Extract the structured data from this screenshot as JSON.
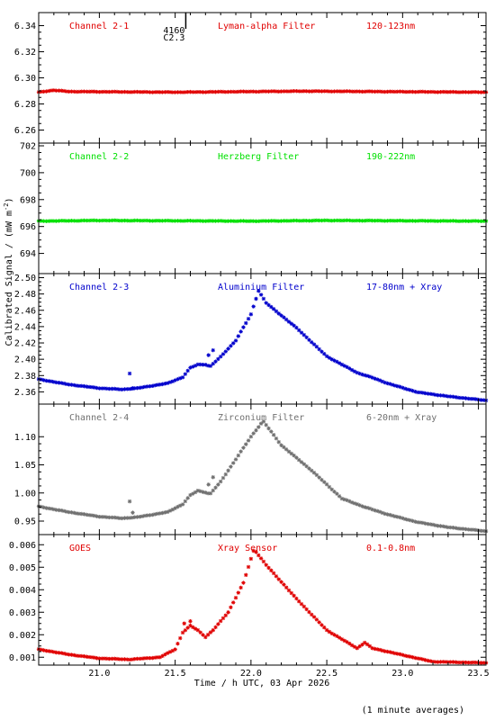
{
  "chart_data": {
    "type": "scatter",
    "xlabel": "Time / h UTC, 03 Apr 2026",
    "xlim": [
      20.6,
      23.55
    ],
    "x_ticks": [
      "21.0",
      "21.5",
      "22.0",
      "22.5",
      "23.0",
      "23.5"
    ],
    "ylabel": "Calibrated Signal / (mW m",
    "ylabel_sup": "-2",
    "ylabel_close": ")",
    "footnote": "(1 minute averages)",
    "marker": {
      "number": "4160",
      "label": "C2.3",
      "x": 21.57
    },
    "panels": [
      {
        "name": "Channel 2-1",
        "filter": "Lyman-alpha Filter",
        "band": "120-123nm",
        "color": "#e00000",
        "ylim": [
          6.25,
          6.35
        ],
        "yticks": [
          "6.26",
          "6.28",
          "6.30",
          "6.32",
          "6.34"
        ],
        "profile": "flat",
        "base": 6.289,
        "amp": 0.0,
        "knots": [
          [
            20.6,
            6.289
          ],
          [
            20.7,
            6.2905
          ],
          [
            20.8,
            6.2895
          ],
          [
            21.5,
            6.289
          ],
          [
            22.35,
            6.2898
          ],
          [
            23.55,
            6.289
          ]
        ]
      },
      {
        "name": "Channel 2-2",
        "filter": "Herzberg Filter",
        "band": "190-222nm",
        "color": "#00e000",
        "ylim": [
          692.5,
          702.2
        ],
        "yticks": [
          "694",
          "696",
          "698",
          "700",
          "702"
        ],
        "profile": "flat",
        "base": 696.4,
        "amp": 0.0,
        "knots": [
          [
            20.6,
            696.4
          ],
          [
            21.0,
            696.45
          ],
          [
            22.0,
            696.4
          ],
          [
            22.5,
            696.45
          ],
          [
            23.55,
            696.4
          ]
        ]
      },
      {
        "name": "Channel 2-3",
        "filter": "Aluminium Filter",
        "band": "17-80nm + Xray",
        "color": "#0000cc",
        "ylim": [
          2.345,
          2.505
        ],
        "yticks": [
          "2.36",
          "2.38",
          "2.40",
          "2.42",
          "2.44",
          "2.46",
          "2.48",
          "2.50"
        ],
        "profile": "flare",
        "base": 2.3755,
        "amp": 0.1085,
        "knots": [
          [
            20.6,
            2.3755
          ],
          [
            20.8,
            2.369
          ],
          [
            21.0,
            2.3645
          ],
          [
            21.15,
            2.363
          ],
          [
            21.25,
            2.3645
          ],
          [
            21.45,
            2.3705
          ],
          [
            21.55,
            2.378
          ],
          [
            21.6,
            2.3895
          ],
          [
            21.65,
            2.3935
          ],
          [
            21.7,
            2.3935
          ],
          [
            21.73,
            2.391
          ],
          [
            21.8,
            2.403
          ],
          [
            21.9,
            2.423
          ],
          [
            22.0,
            2.455
          ],
          [
            22.05,
            2.484
          ],
          [
            22.1,
            2.469
          ],
          [
            22.3,
            2.4385
          ],
          [
            22.5,
            2.4035
          ],
          [
            22.7,
            2.3835
          ],
          [
            22.8,
            2.3775
          ],
          [
            22.9,
            2.3705
          ],
          [
            23.1,
            2.3595
          ],
          [
            23.3,
            2.3545
          ],
          [
            23.55,
            2.3495
          ]
        ],
        "outliers": [
          [
            21.2,
            2.3825
          ],
          [
            21.22,
            2.3645
          ],
          [
            21.72,
            2.405
          ],
          [
            21.75,
            2.411
          ]
        ]
      },
      {
        "name": "Channel 2-4",
        "filter": "Zirconium Filter",
        "band": "6-20nm + Xray",
        "color": "#707070",
        "ylim": [
          0.926,
          1.158
        ],
        "yticks": [
          "0.95",
          "1.00",
          "1.05",
          "1.10"
        ],
        "profile": "flare",
        "base": 0.976,
        "amp": 0.152,
        "knots": [
          [
            20.6,
            0.976
          ],
          [
            20.8,
            0.966
          ],
          [
            21.0,
            0.958
          ],
          [
            21.15,
            0.955
          ],
          [
            21.25,
            0.957
          ],
          [
            21.45,
            0.966
          ],
          [
            21.55,
            0.98
          ],
          [
            21.6,
            0.996
          ],
          [
            21.65,
            1.004
          ],
          [
            21.7,
            1.001
          ],
          [
            21.73,
            0.998
          ],
          [
            21.8,
            1.02
          ],
          [
            21.9,
            1.06
          ],
          [
            22.0,
            1.1
          ],
          [
            22.08,
            1.128
          ],
          [
            22.2,
            1.085
          ],
          [
            22.4,
            1.04
          ],
          [
            22.6,
            0.99
          ],
          [
            22.75,
            0.975
          ],
          [
            22.9,
            0.962
          ],
          [
            23.1,
            0.948
          ],
          [
            23.3,
            0.939
          ],
          [
            23.55,
            0.932
          ]
        ],
        "outliers": [
          [
            21.2,
            0.985
          ],
          [
            21.22,
            0.965
          ],
          [
            21.72,
            1.015
          ],
          [
            21.75,
            1.028
          ]
        ]
      },
      {
        "name": "GOES",
        "filter": "Xray Sensor",
        "band": "0.1-0.8nm",
        "color": "#e00000",
        "ylim": [
          0.00065,
          0.00645
        ],
        "yticks": [
          "0.001",
          "0.002",
          "0.003",
          "0.004",
          "0.005",
          "0.006"
        ],
        "profile": "flare",
        "base": 0.00135,
        "amp": 0.0046,
        "knots": [
          [
            20.6,
            0.00135
          ],
          [
            20.8,
            0.00112
          ],
          [
            21.0,
            0.00095
          ],
          [
            21.2,
            0.0009
          ],
          [
            21.4,
            0.001
          ],
          [
            21.5,
            0.00135
          ],
          [
            21.55,
            0.0021
          ],
          [
            21.6,
            0.0024
          ],
          [
            21.65,
            0.0022
          ],
          [
            21.7,
            0.0019
          ],
          [
            21.75,
            0.0022
          ],
          [
            21.85,
            0.003
          ],
          [
            21.95,
            0.0043
          ],
          [
            22.02,
            0.0058
          ],
          [
            22.1,
            0.0051
          ],
          [
            22.3,
            0.0036
          ],
          [
            22.5,
            0.0022
          ],
          [
            22.7,
            0.0014
          ],
          [
            22.75,
            0.00165
          ],
          [
            22.8,
            0.0014
          ],
          [
            23.0,
            0.0011
          ],
          [
            23.2,
            0.0008
          ],
          [
            23.55,
            0.00075
          ]
        ],
        "outliers": [
          [
            21.56,
            0.0025
          ],
          [
            21.6,
            0.0026
          ]
        ]
      }
    ]
  }
}
